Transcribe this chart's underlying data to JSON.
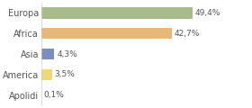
{
  "categories": [
    "Europa",
    "Africa",
    "Asia",
    "America",
    "Apolidi"
  ],
  "values": [
    49.4,
    42.7,
    4.3,
    3.5,
    0.1
  ],
  "labels": [
    "49,4%",
    "42,7%",
    "4,3%",
    "3,5%",
    "0,1%"
  ],
  "colors": [
    "#a8bb8a",
    "#e8b87a",
    "#7b8fbf",
    "#f0d878",
    "#cccccc"
  ],
  "background_color": "#ffffff",
  "xlim": [
    0,
    68
  ],
  "bar_height": 0.55,
  "label_fontsize": 6.5,
  "ytick_fontsize": 7.0,
  "figsize": [
    2.8,
    1.2
  ],
  "dpi": 100
}
